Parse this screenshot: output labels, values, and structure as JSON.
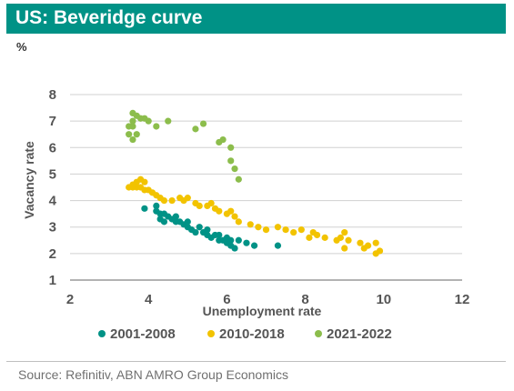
{
  "header": {
    "title": "US: Beveridge curve"
  },
  "unit_label": "%",
  "footer": {
    "source": "Source: Refinitiv, ABN AMRO Group Economics"
  },
  "colors": {
    "header_bg": "#009286",
    "s2001": "#009286",
    "s2010": "#f2c300",
    "s2021": "#8cbd4c"
  },
  "chart_data": {
    "type": "scatter",
    "title": "US: Beveridge curve",
    "xlabel": "Unemployment rate",
    "ylabel": "Vacancy rate",
    "xlim": [
      2,
      12
    ],
    "ylim": [
      1,
      8
    ],
    "xticks": [
      2,
      4,
      6,
      8,
      10,
      12
    ],
    "yticks": [
      1,
      2,
      3,
      4,
      5,
      6,
      7,
      8
    ],
    "grid": "horizontal",
    "legend_position": "bottom",
    "series": [
      {
        "name": "2001-2008",
        "color": "#009286",
        "points": [
          [
            3.9,
            3.7
          ],
          [
            4.2,
            3.8
          ],
          [
            4.2,
            3.6
          ],
          [
            4.3,
            3.5
          ],
          [
            4.3,
            3.3
          ],
          [
            4.4,
            3.5
          ],
          [
            4.4,
            3.2
          ],
          [
            4.5,
            3.4
          ],
          [
            4.6,
            3.3
          ],
          [
            4.7,
            3.4
          ],
          [
            4.7,
            3.2
          ],
          [
            4.8,
            3.2
          ],
          [
            4.9,
            3.1
          ],
          [
            5.0,
            3.0
          ],
          [
            5.0,
            3.2
          ],
          [
            5.1,
            2.9
          ],
          [
            5.2,
            2.8
          ],
          [
            5.3,
            3.0
          ],
          [
            5.4,
            2.8
          ],
          [
            5.5,
            2.7
          ],
          [
            5.5,
            2.9
          ],
          [
            5.6,
            2.6
          ],
          [
            5.7,
            2.7
          ],
          [
            5.8,
            2.5
          ],
          [
            5.8,
            2.7
          ],
          [
            5.9,
            2.5
          ],
          [
            6.0,
            2.6
          ],
          [
            6.0,
            2.4
          ],
          [
            6.1,
            2.5
          ],
          [
            6.1,
            2.3
          ],
          [
            6.2,
            2.2
          ],
          [
            6.3,
            2.5
          ],
          [
            6.5,
            2.4
          ],
          [
            6.7,
            2.3
          ],
          [
            7.3,
            2.3
          ]
        ]
      },
      {
        "name": "2010-2018",
        "color": "#f2c300",
        "points": [
          [
            9.8,
            2.0
          ],
          [
            9.9,
            2.1
          ],
          [
            9.5,
            2.2
          ],
          [
            9.8,
            2.4
          ],
          [
            9.6,
            2.3
          ],
          [
            9.4,
            2.4
          ],
          [
            9.0,
            2.2
          ],
          [
            9.1,
            2.5
          ],
          [
            9.0,
            2.8
          ],
          [
            8.9,
            2.6
          ],
          [
            8.8,
            2.5
          ],
          [
            8.5,
            2.6
          ],
          [
            8.3,
            2.7
          ],
          [
            8.2,
            2.8
          ],
          [
            8.1,
            2.6
          ],
          [
            7.9,
            2.9
          ],
          [
            7.7,
            2.8
          ],
          [
            7.5,
            2.9
          ],
          [
            7.3,
            3.0
          ],
          [
            7.0,
            2.9
          ],
          [
            6.8,
            3.0
          ],
          [
            6.6,
            3.1
          ],
          [
            6.3,
            3.2
          ],
          [
            6.2,
            3.4
          ],
          [
            6.1,
            3.6
          ],
          [
            6.0,
            3.5
          ],
          [
            5.8,
            3.6
          ],
          [
            5.7,
            3.7
          ],
          [
            5.6,
            3.9
          ],
          [
            5.5,
            3.8
          ],
          [
            5.3,
            3.8
          ],
          [
            5.2,
            3.9
          ],
          [
            5.0,
            4.1
          ],
          [
            4.9,
            4.0
          ],
          [
            4.8,
            4.1
          ],
          [
            4.6,
            4.0
          ],
          [
            4.4,
            4.0
          ],
          [
            4.3,
            4.1
          ],
          [
            4.2,
            4.2
          ],
          [
            4.1,
            4.3
          ],
          [
            4.0,
            4.4
          ],
          [
            3.9,
            4.4
          ],
          [
            3.8,
            4.5
          ],
          [
            3.7,
            4.5
          ],
          [
            3.6,
            4.5
          ],
          [
            3.7,
            4.7
          ],
          [
            3.8,
            4.8
          ],
          [
            3.9,
            4.7
          ],
          [
            3.5,
            4.5
          ],
          [
            3.6,
            4.6
          ]
        ]
      },
      {
        "name": "2021-2022",
        "color": "#8cbd4c",
        "points": [
          [
            6.3,
            4.8
          ],
          [
            6.2,
            5.2
          ],
          [
            6.1,
            5.5
          ],
          [
            6.1,
            6.0
          ],
          [
            5.9,
            6.3
          ],
          [
            5.8,
            6.2
          ],
          [
            5.4,
            6.9
          ],
          [
            5.2,
            6.7
          ],
          [
            4.5,
            7.0
          ],
          [
            4.2,
            6.8
          ],
          [
            4.0,
            7.0
          ],
          [
            3.9,
            7.1
          ],
          [
            3.8,
            7.1
          ],
          [
            3.7,
            7.2
          ],
          [
            3.7,
            6.5
          ],
          [
            3.6,
            6.8
          ],
          [
            3.6,
            6.3
          ],
          [
            3.6,
            7.3
          ],
          [
            3.5,
            6.5
          ],
          [
            3.5,
            6.8
          ],
          [
            3.6,
            7.0
          ]
        ]
      }
    ]
  }
}
